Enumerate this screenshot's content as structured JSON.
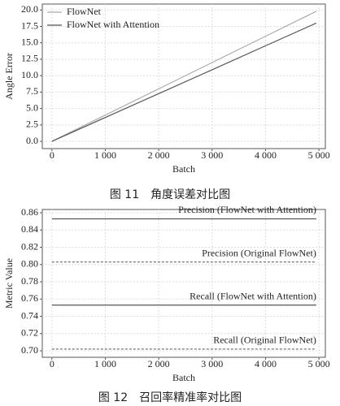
{
  "chart_data": [
    {
      "type": "line",
      "title": "图 11　角度误差对比图",
      "x_label": "Batch",
      "y_label": "Angle Error",
      "x": [
        0,
        1000,
        2000,
        3000,
        4000,
        4950
      ],
      "series": [
        {
          "name": "FlowNet",
          "color": "#aaaaaa",
          "style": "solid",
          "values": [
            0,
            4,
            8,
            12,
            16,
            19.8
          ]
        },
        {
          "name": "FlowNet with Attention",
          "color": "#555555",
          "style": "solid",
          "values": [
            0,
            3.64,
            7.27,
            10.9,
            14.55,
            18.0
          ]
        }
      ],
      "xlim": [
        -180,
        5120
      ],
      "ylim": [
        -1.1,
        20.9
      ],
      "xticks": [
        0,
        {
          "value": 1000,
          "label": "1 000"
        },
        {
          "value": 2000,
          "label": "2 000"
        },
        {
          "value": 3000,
          "label": "3 000"
        },
        {
          "value": 4000,
          "label": "4 000"
        },
        {
          "value": 5000,
          "label": "5 000"
        }
      ],
      "yticks": [
        {
          "value": 0,
          "label": "0.0"
        },
        2.5,
        {
          "value": 5,
          "label": "5.0"
        },
        7.5,
        {
          "value": 10,
          "label": "10.0"
        },
        12.5,
        {
          "value": 15,
          "label": "15.0"
        },
        17.5,
        {
          "value": 20,
          "label": "20.0"
        }
      ],
      "grid": true,
      "legend": "upper left"
    },
    {
      "type": "line",
      "title": "图 12　召回率精准率对比图",
      "x_label": "Batch",
      "y_label": "Metric Value",
      "x": [
        0,
        4950
      ],
      "series": [
        {
          "name": "Precision (FlowNet with Attention)",
          "color": "#555555",
          "style": "solid",
          "values": [
            0.853,
            0.853
          ]
        },
        {
          "name": "Precision (Original FlowNet)",
          "color": "#777777",
          "style": "dashed",
          "values": [
            0.803,
            0.803
          ]
        },
        {
          "name": "Recall (FlowNet with Attention)",
          "color": "#555555",
          "style": "solid",
          "values": [
            0.753,
            0.753
          ]
        },
        {
          "name": "Recall (Original FlowNet)",
          "color": "#777777",
          "style": "dashed",
          "values": [
            0.702,
            0.702
          ]
        }
      ],
      "xlim": [
        -180,
        5120
      ],
      "ylim": [
        0.6925,
        0.8638
      ],
      "xticks": [
        0,
        {
          "value": 1000,
          "label": "1 000"
        },
        {
          "value": 2000,
          "label": "2 000"
        },
        {
          "value": 3000,
          "label": "3 000"
        },
        {
          "value": 4000,
          "label": "4 000"
        },
        {
          "value": 5000,
          "label": "5 000"
        }
      ],
      "yticks": [
        {
          "value": 0.7,
          "label": "0.70"
        },
        0.72,
        0.74,
        0.76,
        0.78,
        {
          "value": 0.8,
          "label": "0.80"
        },
        0.82,
        0.84,
        0.86
      ],
      "grid": true
    }
  ]
}
